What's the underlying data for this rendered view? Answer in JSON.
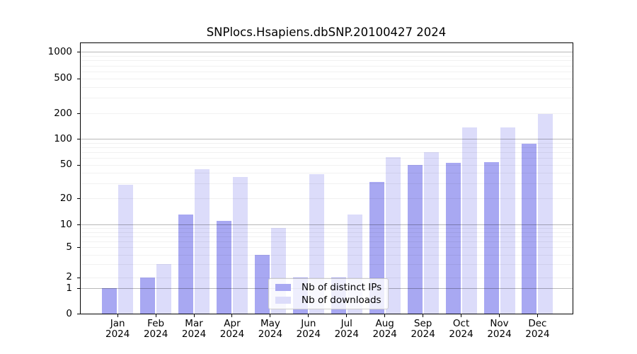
{
  "chart_data": {
    "type": "bar",
    "title": "SNPlocs.Hsapiens.dbSNP.20100427 2024",
    "categories": [
      "Jan",
      "Feb",
      "Mar",
      "Apr",
      "May",
      "Jun",
      "Jul",
      "Aug",
      "Sep",
      "Oct",
      "Nov",
      "Dec"
    ],
    "x_year": "2024",
    "series": [
      {
        "name": "Nb of distinct IPs",
        "color": "#a8a8f2",
        "values": [
          1,
          2,
          13,
          11,
          4,
          2,
          2,
          31,
          50,
          53,
          54,
          87
        ]
      },
      {
        "name": "Nb of downloads",
        "color": "#dcdcfa",
        "values": [
          29,
          3,
          44,
          36,
          9,
          39,
          13,
          61,
          70,
          137,
          135,
          197
        ]
      }
    ],
    "yscale": "symlog",
    "y_ticks": [
      0,
      1,
      2,
      5,
      10,
      20,
      50,
      100,
      200,
      500,
      1000
    ],
    "ylim": [
      0,
      1000
    ],
    "grid": true,
    "legend_position": "lower center"
  }
}
